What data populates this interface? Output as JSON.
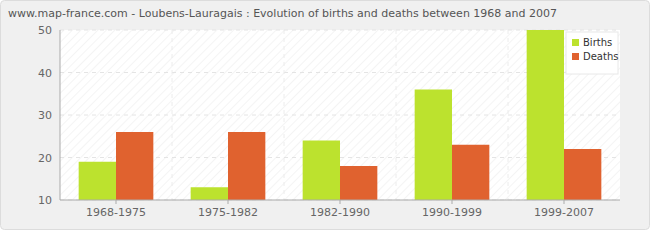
{
  "chart_data": {
    "type": "bar",
    "title": "www.map-france.com - Loubens-Lauragais : Evolution of births and deaths between 1968 and 2007",
    "categories": [
      "1968-1975",
      "1975-1982",
      "1982-1990",
      "1990-1999",
      "1999-2007"
    ],
    "series": [
      {
        "name": "Births",
        "color": "#bce22e",
        "values": [
          19,
          13,
          24,
          36,
          50
        ]
      },
      {
        "name": "Deaths",
        "color": "#e0622f",
        "values": [
          26,
          26,
          18,
          23,
          22
        ]
      }
    ],
    "ylim": [
      10,
      50
    ],
    "yticks": [
      10,
      20,
      30,
      40,
      50
    ],
    "grid": true,
    "legend": "top-right"
  }
}
